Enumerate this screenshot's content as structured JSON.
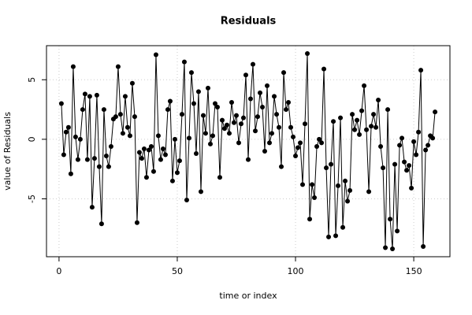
{
  "chart_data": {
    "type": "line",
    "title": "Residuals",
    "x_label": "time or index",
    "y_label": "value of Residuals",
    "x": [
      1,
      2,
      3,
      4,
      5,
      6,
      7,
      8,
      9,
      10,
      11,
      12,
      13,
      14,
      15,
      16,
      17,
      18,
      19,
      20,
      21,
      22,
      23,
      24,
      25,
      26,
      27,
      28,
      29,
      30,
      31,
      32,
      33,
      34,
      35,
      36,
      37,
      38,
      39,
      40,
      41,
      42,
      43,
      44,
      45,
      46,
      47,
      48,
      49,
      50,
      51,
      52,
      53,
      54,
      55,
      56,
      57,
      58,
      59,
      60,
      61,
      62,
      63,
      64,
      65,
      66,
      67,
      68,
      69,
      70,
      71,
      72,
      73,
      74,
      75,
      76,
      77,
      78,
      79,
      80,
      81,
      82,
      83,
      84,
      85,
      86,
      87,
      88,
      89,
      90,
      91,
      92,
      93,
      94,
      95,
      96,
      97,
      98,
      99,
      100,
      101,
      102,
      103,
      104,
      105,
      106,
      107,
      108,
      109,
      110,
      111,
      112,
      113,
      114,
      115,
      116,
      117,
      118,
      119,
      120,
      121,
      122,
      123,
      124,
      125,
      126,
      127,
      128,
      129,
      130,
      131,
      132,
      133,
      134,
      135,
      136,
      137,
      138,
      139,
      140,
      141,
      142,
      143,
      144,
      145,
      146,
      147,
      148,
      149,
      150,
      151,
      152,
      153,
      154,
      155,
      156,
      157,
      158,
      159
    ],
    "series": [
      {
        "color": "#000000",
        "values": [
          3.0,
          -1.3,
          0.6,
          1.0,
          -2.9,
          6.1,
          0.2,
          -1.7,
          0.0,
          2.5,
          3.8,
          -1.7,
          3.6,
          -5.7,
          -1.6,
          3.7,
          -2.3,
          -7.1,
          2.5,
          -1.4,
          -2.3,
          -0.6,
          1.7,
          1.9,
          6.1,
          2.1,
          0.5,
          3.6,
          1.0,
          0.3,
          4.7,
          1.9,
          -7.0,
          -1.1,
          -1.6,
          -0.8,
          -3.2,
          -0.9,
          -0.6,
          -2.7,
          7.1,
          0.3,
          -1.7,
          -0.8,
          -1.3,
          2.5,
          3.2,
          -3.5,
          0.0,
          -2.8,
          -1.8,
          2.1,
          6.5,
          -5.1,
          0.1,
          5.6,
          3.0,
          -1.2,
          4.0,
          -4.4,
          2.0,
          0.5,
          4.3,
          -0.4,
          0.3,
          3.0,
          2.7,
          -3.2,
          1.6,
          0.9,
          1.2,
          0.5,
          3.1,
          1.4,
          2.0,
          -0.3,
          1.3,
          1.8,
          5.4,
          -1.7,
          3.4,
          6.3,
          0.7,
          1.9,
          3.9,
          2.7,
          -1.0,
          4.5,
          -0.3,
          0.5,
          3.6,
          2.1,
          1.0,
          -2.3,
          5.6,
          2.5,
          3.1,
          1.0,
          0.2,
          -1.4,
          -0.7,
          -0.3,
          -3.8,
          1.3,
          7.2,
          -6.7,
          -3.8,
          -4.9,
          -0.6,
          0.0,
          -0.3,
          5.9,
          -2.4,
          -8.2,
          -2.1,
          1.5,
          -8.1,
          -3.9,
          1.8,
          -7.4,
          -3.5,
          -5.2,
          -4.3,
          2.1,
          0.8,
          1.6,
          0.4,
          2.4,
          4.5,
          0.8,
          -4.4,
          1.1,
          2.1,
          1.0,
          3.3,
          -0.6,
          -2.4,
          -9.1,
          2.5,
          -6.7,
          -9.2,
          -2.1,
          -7.7,
          -0.5,
          0.1,
          -1.9,
          -2.6,
          -2.2,
          -4.1,
          -0.2,
          -1.3,
          0.6,
          5.8,
          -9.0,
          -0.9,
          -0.5,
          0.3,
          0.1,
          2.3
        ]
      }
    ],
    "xlim": [
      -5.3,
      165.3
    ],
    "xticks": [
      0,
      50,
      100,
      150
    ],
    "ylim": [
      -9.86,
      7.86
    ],
    "yticks": [
      -5,
      0,
      5
    ],
    "grid": true
  }
}
